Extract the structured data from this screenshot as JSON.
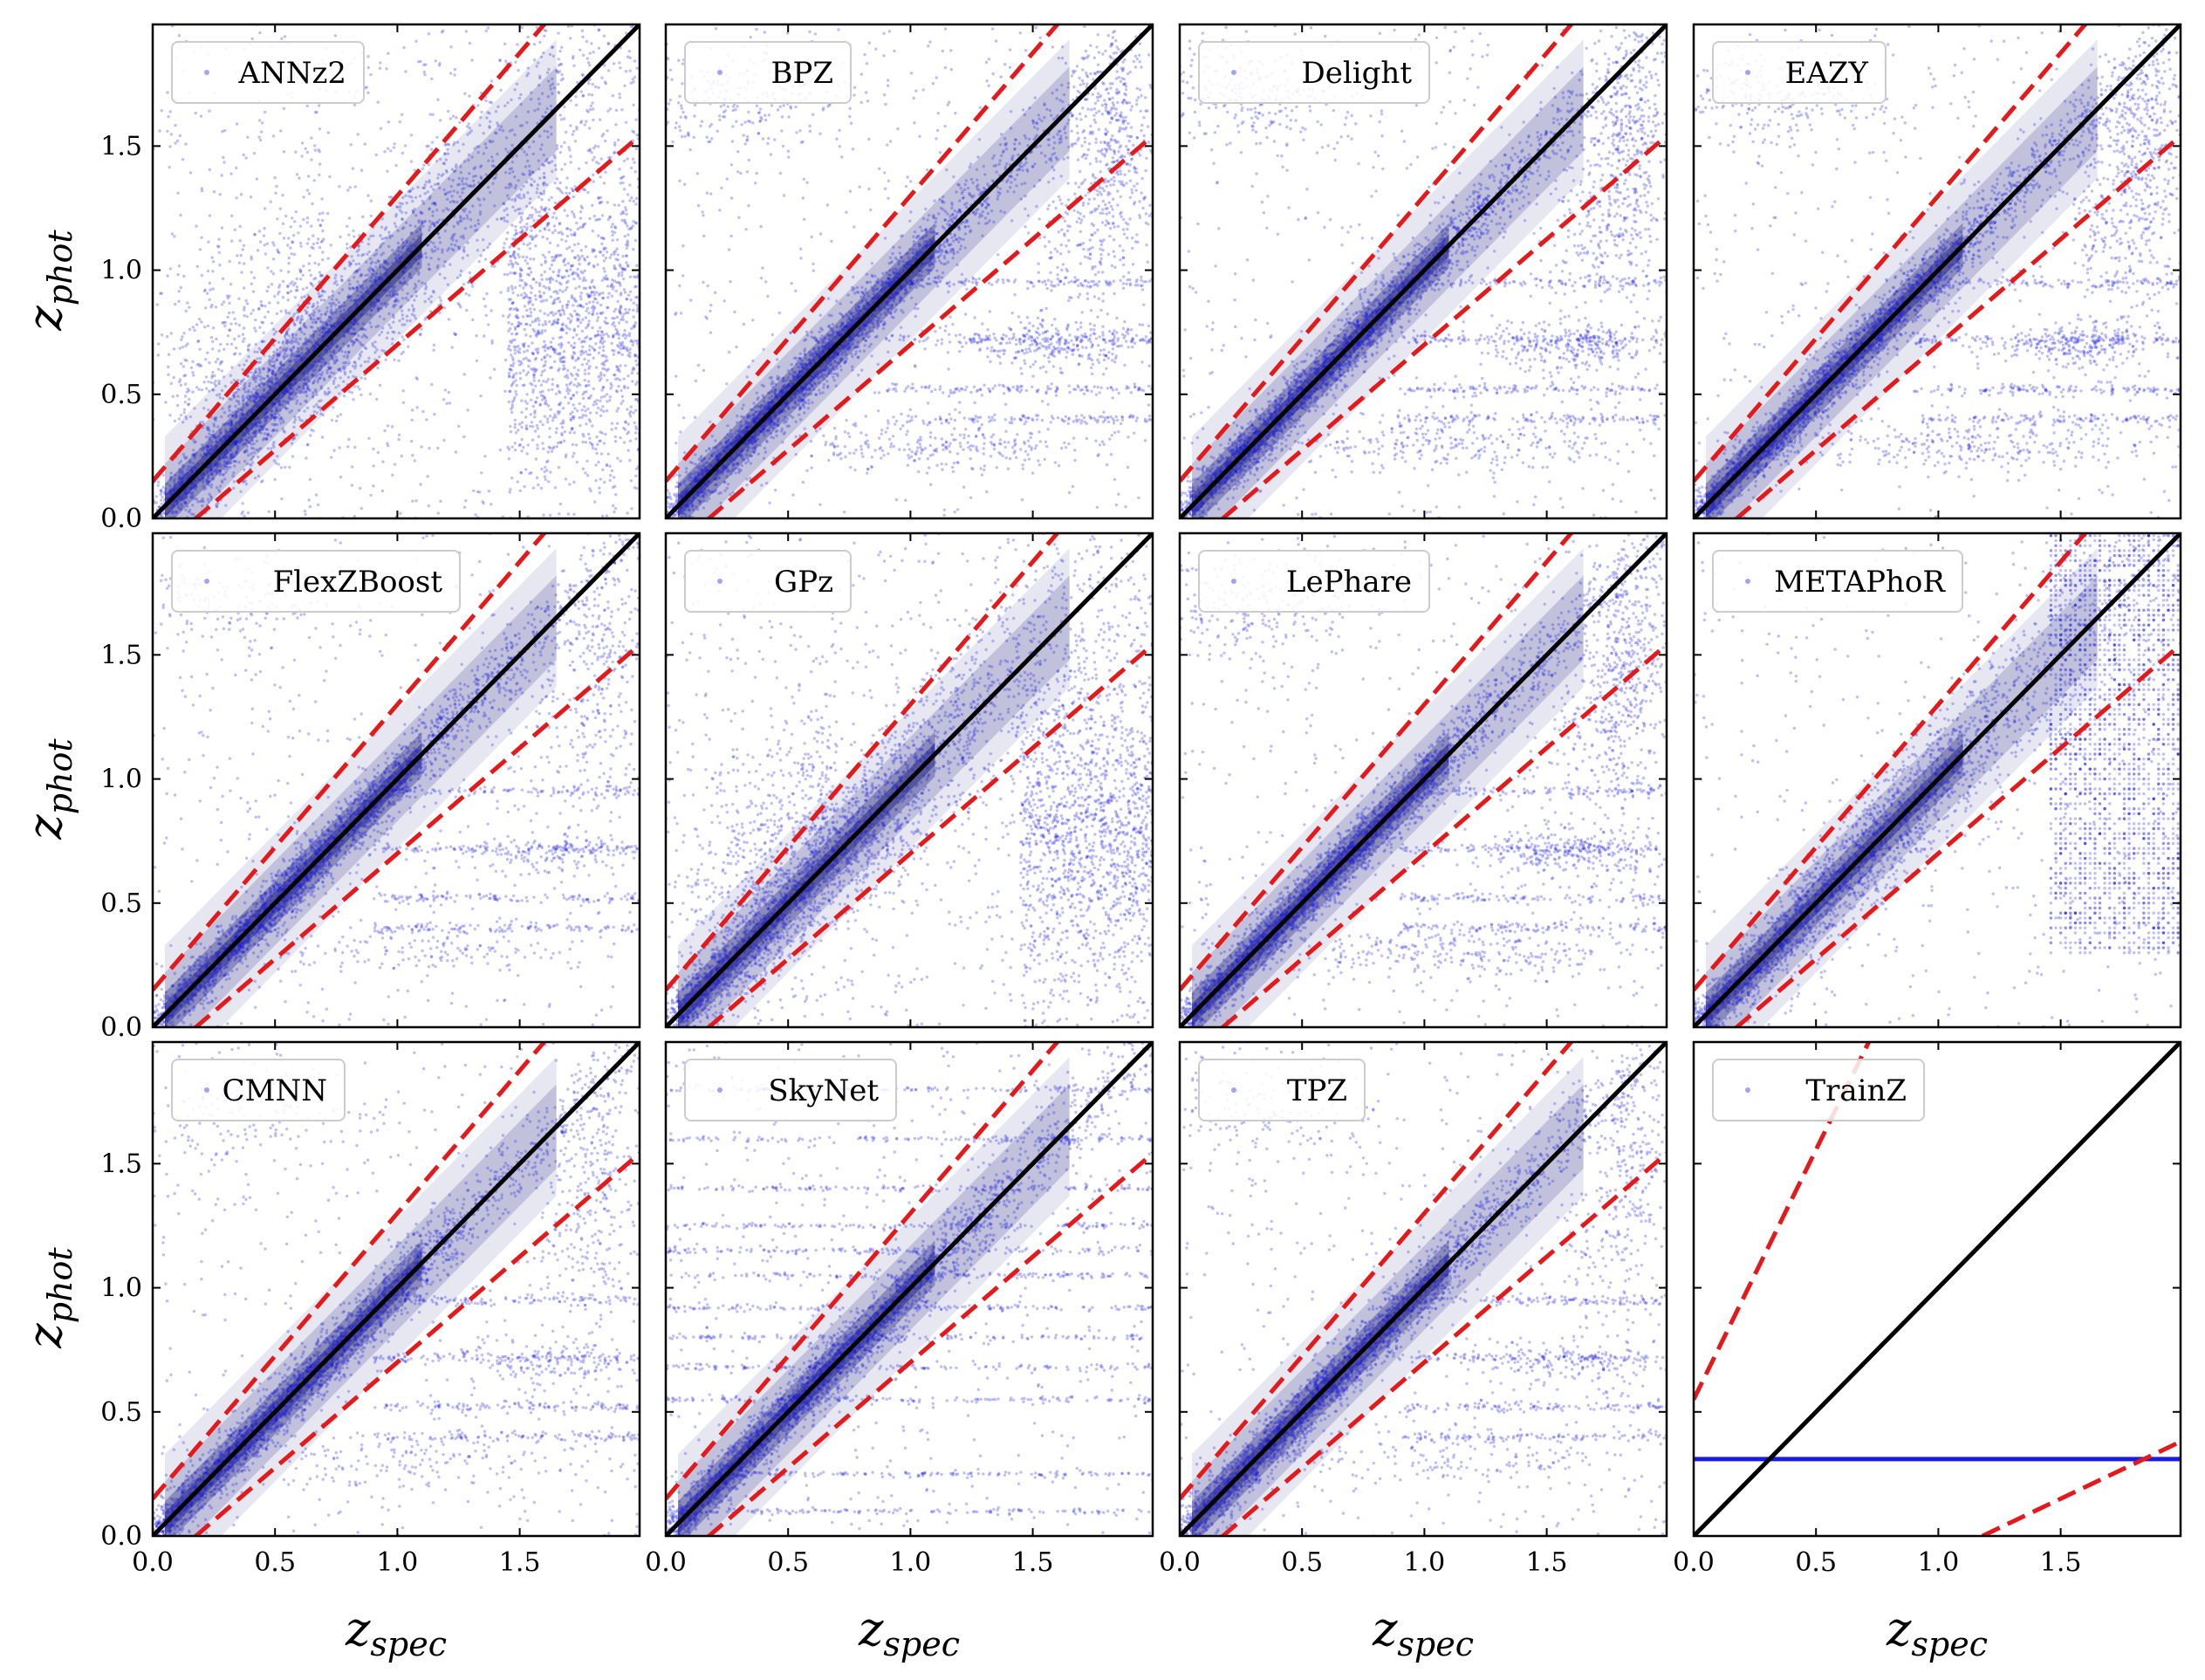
{
  "chart_data": {
    "type": "scatter",
    "layout": {
      "rows": 3,
      "cols": 4
    },
    "xlim": [
      0.0,
      1.99
    ],
    "ylim": [
      0.0,
      1.99
    ],
    "xticks": [
      "0.0",
      "0.5",
      "1.0",
      "1.5"
    ],
    "yticks": [
      "0.0",
      "0.5",
      "1.0",
      "1.5"
    ],
    "xlabel": {
      "base": "z",
      "sub": "spec"
    },
    "ylabel": {
      "base": "z",
      "sub": "phot"
    },
    "colors": {
      "points": "#1a1ae0",
      "identity": "#000000",
      "outlier_bounds": "#e31a1c",
      "density": "#3a3a8c"
    },
    "outlier_bound_slope_offsets": [
      0.15,
      0.15
    ],
    "panels": [
      {
        "name": "ANNz2",
        "style": "broad"
      },
      {
        "name": "BPZ",
        "style": "template"
      },
      {
        "name": "Delight",
        "style": "template"
      },
      {
        "name": "EAZY",
        "style": "template"
      },
      {
        "name": "FlexZBoost",
        "style": "tight"
      },
      {
        "name": "GPz",
        "style": "broad"
      },
      {
        "name": "LePhare",
        "style": "template"
      },
      {
        "name": "METAPhoR",
        "style": "grid"
      },
      {
        "name": "CMNN",
        "style": "tight"
      },
      {
        "name": "SkyNet",
        "style": "stripes"
      },
      {
        "name": "TPZ",
        "style": "tight"
      },
      {
        "name": "TrainZ",
        "style": "constant",
        "constant_value": 0.31
      }
    ]
  }
}
